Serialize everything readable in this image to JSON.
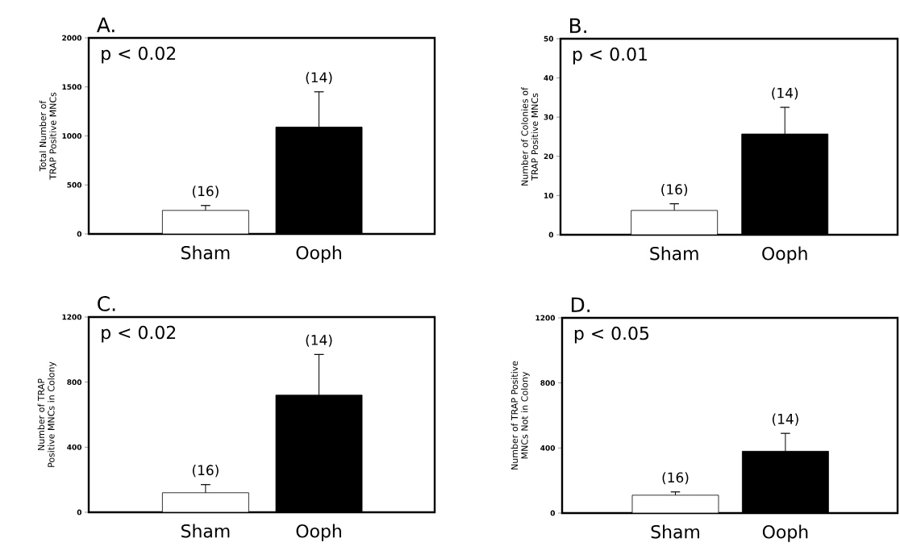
{
  "chart_data": [
    {
      "type": "bar",
      "title": "A.",
      "ylabel": "Total Number of TRAP Positive MNCs",
      "categories": [
        "Sham",
        "Ooph"
      ],
      "values": [
        240,
        1090
      ],
      "colors": [
        "#ffffff",
        "#000000"
      ],
      "errors": [
        [
          240,
          290
        ],
        [
          1090,
          1450
        ]
      ],
      "ylim": [
        0,
        2000
      ],
      "yticks": [
        0,
        500,
        1000,
        1500,
        2000
      ],
      "annotations": [
        "p < 0.02",
        {
          "text": "(16)",
          "x": "Sham",
          "y": 290
        },
        {
          "text": "(14)",
          "x": "Ooph",
          "y": 1450
        }
      ]
    },
    {
      "type": "bar",
      "title": "B.",
      "ylabel": "Number of Colonies of TRAP Positive MNCs",
      "categories": [
        "Sham",
        "Ooph"
      ],
      "values": [
        6.2,
        25.7
      ],
      "colors": [
        "#ffffff",
        "#000000"
      ],
      "errors": [
        [
          6.2,
          7.9
        ],
        [
          25.7,
          32.5
        ]
      ],
      "ylim": [
        0,
        50
      ],
      "yticks": [
        0,
        10,
        20,
        30,
        40,
        50
      ],
      "annotations": [
        "p < 0.01",
        {
          "text": "(16)",
          "x": "Sham",
          "y": 7.9
        },
        {
          "text": "(14)",
          "x": "Ooph",
          "y": 32.5
        }
      ]
    },
    {
      "type": "bar",
      "title": "C.",
      "ylabel": "Number of TRAP Positive MNCs in Colony",
      "categories": [
        "Sham",
        "Ooph"
      ],
      "values": [
        120,
        720
      ],
      "colors": [
        "#ffffff",
        "#000000"
      ],
      "errors": [
        [
          120,
          170
        ],
        [
          720,
          970
        ]
      ],
      "ylim": [
        0,
        1200
      ],
      "yticks": [
        0,
        400,
        800,
        1200
      ],
      "annotations": [
        "p < 0.02",
        {
          "text": "(16)",
          "x": "Sham",
          "y": 170
        },
        {
          "text": "(14)",
          "x": "Ooph",
          "y": 970
        }
      ]
    },
    {
      "type": "bar",
      "title": "D.",
      "ylabel": "Number of TRAP Positive MNCs Not in Colony",
      "categories": [
        "Sham",
        "Ooph"
      ],
      "values": [
        110,
        380
      ],
      "colors": [
        "#ffffff",
        "#000000"
      ],
      "errors": [
        [
          110,
          130
        ],
        [
          380,
          490
        ]
      ],
      "ylim": [
        0,
        1200
      ],
      "yticks": [
        0,
        400,
        800,
        1200
      ],
      "annotations": [
        "p < 0.05",
        {
          "text": "(16)",
          "x": "Sham",
          "y": 130
        },
        {
          "text": "(14)",
          "x": "Ooph",
          "y": 490
        }
      ]
    }
  ]
}
